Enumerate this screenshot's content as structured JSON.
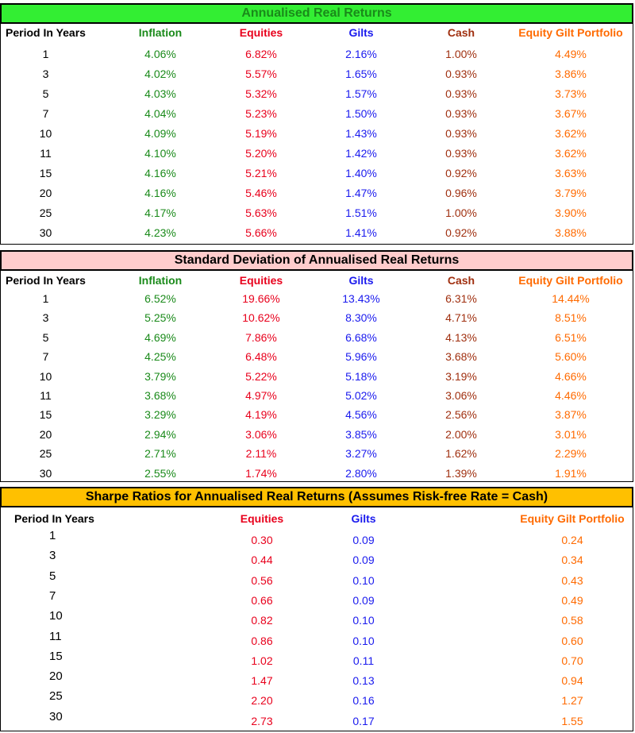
{
  "tables": [
    {
      "title": "Annualised Real Returns",
      "headers": [
        "Period In Years",
        "Inflation",
        "Equities",
        "Gilts",
        "Cash",
        "Equity Gilt Portfolio"
      ],
      "rows": [
        [
          "1",
          "4.06%",
          "6.82%",
          "2.16%",
          "1.00%",
          "4.49%"
        ],
        [
          "3",
          "4.02%",
          "5.57%",
          "1.65%",
          "0.93%",
          "3.86%"
        ],
        [
          "5",
          "4.03%",
          "5.32%",
          "1.57%",
          "0.93%",
          "3.73%"
        ],
        [
          "7",
          "4.04%",
          "5.23%",
          "1.50%",
          "0.93%",
          "3.67%"
        ],
        [
          "10",
          "4.09%",
          "5.19%",
          "1.43%",
          "0.93%",
          "3.62%"
        ],
        [
          "11",
          "4.10%",
          "5.20%",
          "1.42%",
          "0.93%",
          "3.62%"
        ],
        [
          "15",
          "4.16%",
          "5.21%",
          "1.40%",
          "0.92%",
          "3.63%"
        ],
        [
          "20",
          "4.16%",
          "5.46%",
          "1.47%",
          "0.96%",
          "3.79%"
        ],
        [
          "25",
          "4.17%",
          "5.63%",
          "1.51%",
          "1.00%",
          "3.90%"
        ],
        [
          "30",
          "4.23%",
          "5.66%",
          "1.41%",
          "0.92%",
          "3.88%"
        ]
      ]
    },
    {
      "title": "Standard Deviation of Annualised Real Returns",
      "headers": [
        "Period In Years",
        "Inflation",
        "Equities",
        "Gilts",
        "Cash",
        "Equity Gilt Portfolio"
      ],
      "rows": [
        [
          "1",
          "6.52%",
          "19.66%",
          "13.43%",
          "6.31%",
          "14.44%"
        ],
        [
          "3",
          "5.25%",
          "10.62%",
          "8.30%",
          "4.71%",
          "8.51%"
        ],
        [
          "5",
          "4.69%",
          "7.86%",
          "6.68%",
          "4.13%",
          "6.51%"
        ],
        [
          "7",
          "4.25%",
          "6.48%",
          "5.96%",
          "3.68%",
          "5.60%"
        ],
        [
          "10",
          "3.79%",
          "5.22%",
          "5.18%",
          "3.19%",
          "4.66%"
        ],
        [
          "11",
          "3.68%",
          "4.97%",
          "5.02%",
          "3.06%",
          "4.46%"
        ],
        [
          "15",
          "3.29%",
          "4.19%",
          "4.56%",
          "2.56%",
          "3.87%"
        ],
        [
          "20",
          "2.94%",
          "3.06%",
          "3.85%",
          "2.00%",
          "3.01%"
        ],
        [
          "25",
          "2.71%",
          "2.11%",
          "3.27%",
          "1.62%",
          "2.29%"
        ],
        [
          "30",
          "2.55%",
          "1.74%",
          "2.80%",
          "1.39%",
          "1.91%"
        ]
      ]
    },
    {
      "title": "Sharpe Ratios for Annualised Real Returns (Assumes Risk-free Rate = Cash)",
      "headers": [
        "Period In Years",
        "Equities",
        "Gilts",
        "Equity Gilt Portfolio"
      ],
      "rows": [
        [
          "1",
          "0.30",
          "0.09",
          "0.24"
        ],
        [
          "3",
          "0.44",
          "0.09",
          "0.34"
        ],
        [
          "5",
          "0.56",
          "0.10",
          "0.43"
        ],
        [
          "7",
          "0.66",
          "0.09",
          "0.49"
        ],
        [
          "10",
          "0.82",
          "0.10",
          "0.58"
        ],
        [
          "11",
          "0.86",
          "0.10",
          "0.60"
        ],
        [
          "15",
          "1.02",
          "0.11",
          "0.70"
        ],
        [
          "20",
          "1.47",
          "0.13",
          "0.94"
        ],
        [
          "25",
          "2.20",
          "0.16",
          "1.27"
        ],
        [
          "30",
          "2.73",
          "0.17",
          "1.55"
        ]
      ]
    }
  ],
  "colors": {
    "inflation": "#1a8a1a",
    "equities": "#e8001c",
    "gilts": "#1a1aee",
    "cash": "#a03010",
    "portfolio": "#ff6a00",
    "title_bg_1": "#33ee33",
    "title_bg_2": "#ffcccc",
    "title_bg_3": "#ffc000"
  }
}
